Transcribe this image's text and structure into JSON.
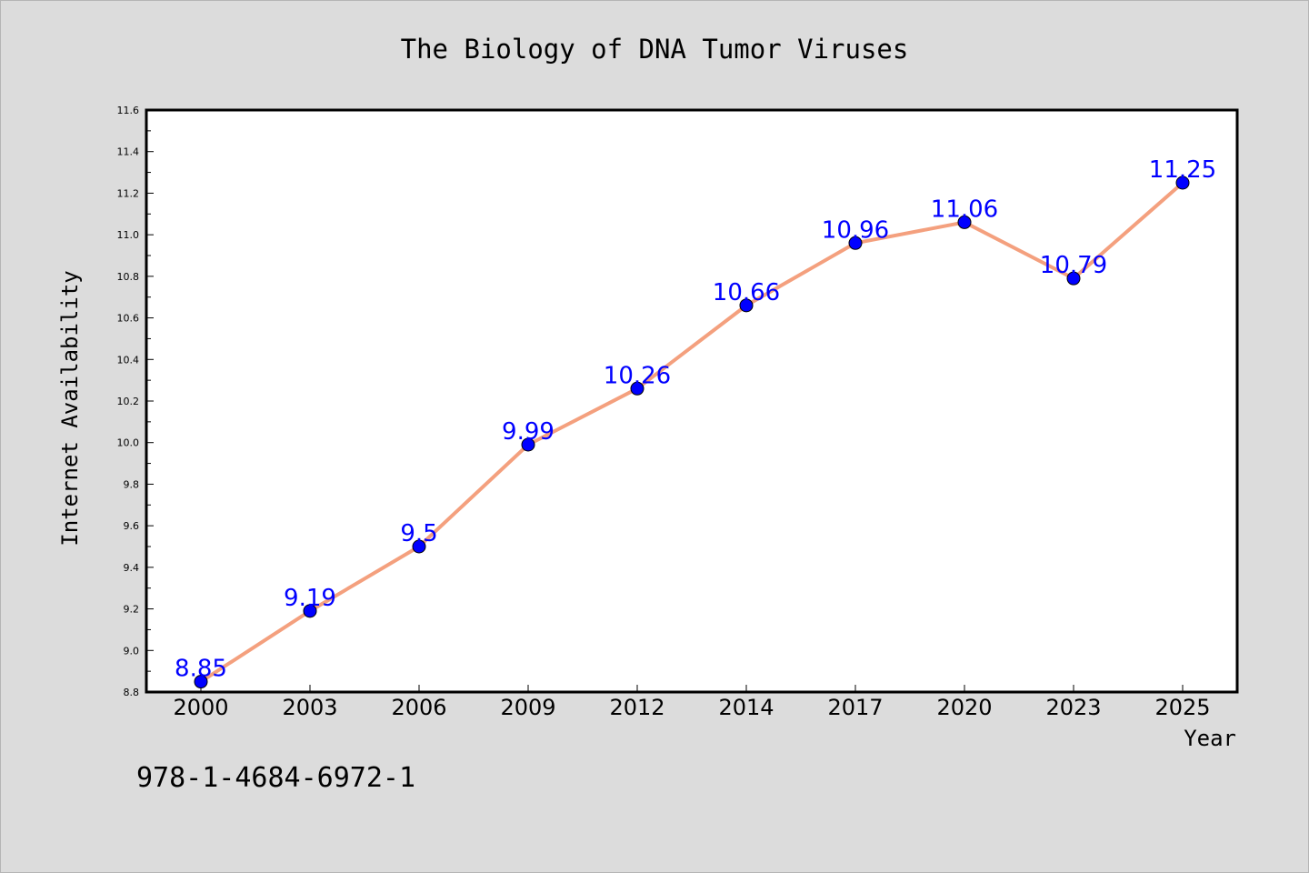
{
  "chart_data": {
    "type": "line",
    "title": "The Biology of DNA Tumor Viruses",
    "xlabel": "Year",
    "ylabel": "Internet Availability",
    "categories": [
      "2000",
      "2003",
      "2006",
      "2009",
      "2012",
      "2014",
      "2017",
      "2020",
      "2023",
      "2025"
    ],
    "series": [
      {
        "values": [
          8.85,
          9.19,
          9.5,
          9.99,
          10.26,
          10.66,
          10.96,
          11.06,
          10.79,
          11.25
        ],
        "data_labels": [
          "8.85",
          "9.19",
          "9.5",
          "9.99",
          "10.26",
          "10.66",
          "10.96",
          "11.06",
          "10.79",
          "11.25"
        ]
      }
    ],
    "ylim": [
      8.8,
      11.6
    ],
    "yticks": [
      "8.8",
      "9.0",
      "9.2",
      "9.4",
      "9.6",
      "9.8",
      "10.0",
      "10.2",
      "10.4",
      "10.6",
      "10.8",
      "11.0",
      "11.2",
      "11.4",
      "11.6"
    ],
    "grid": false,
    "legend": "none",
    "colors": {
      "line": "#f4a07e",
      "marker": "#0000ff",
      "label": "#0000ff",
      "background": "#dcdcdc",
      "plot_area": "#ffffff"
    }
  },
  "footer": {
    "isbn": "978-1-4684-6972-1"
  }
}
